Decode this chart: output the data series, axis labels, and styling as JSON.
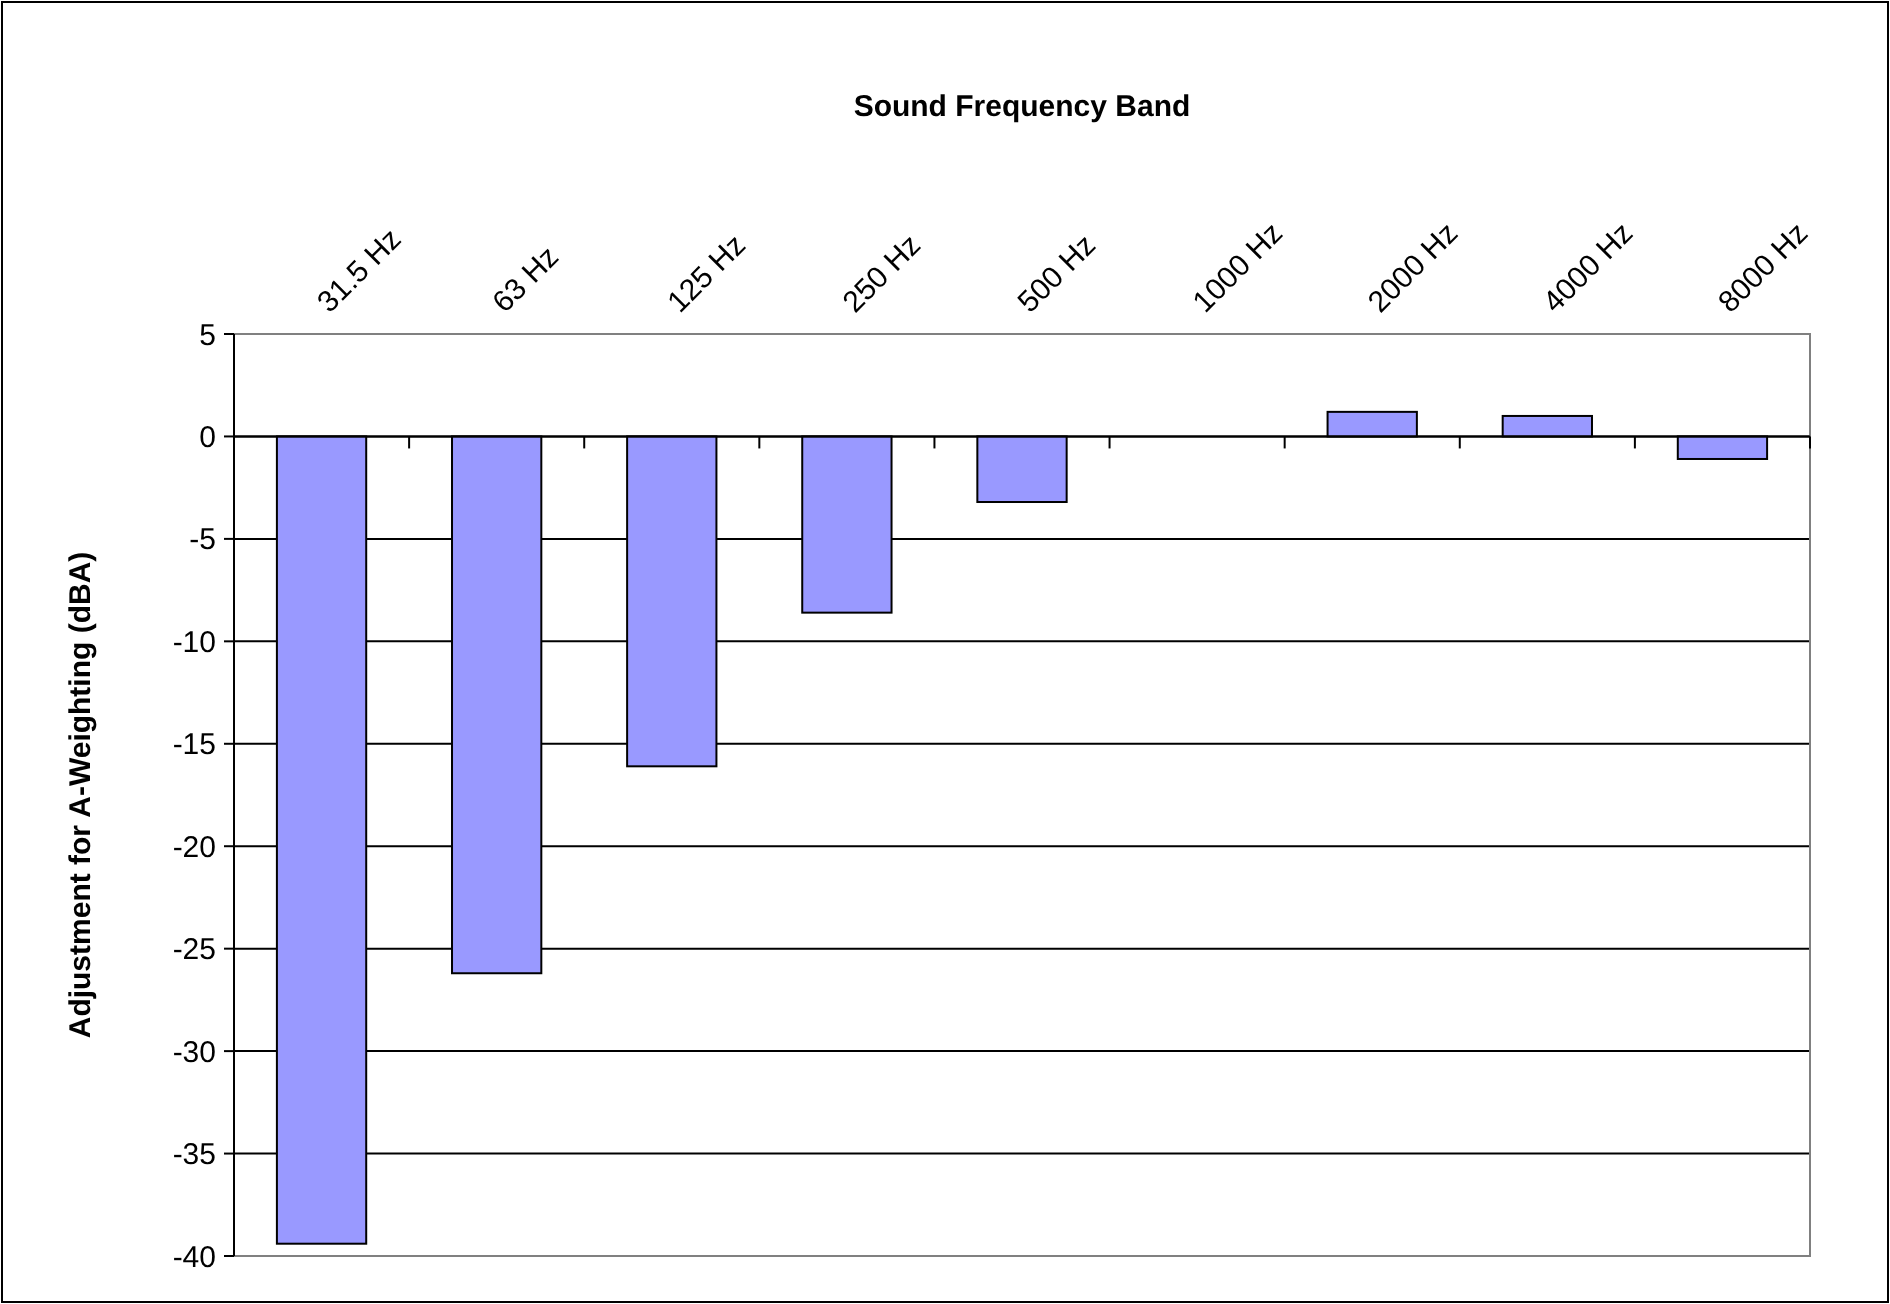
{
  "chart_data": {
    "type": "bar",
    "xlabel": "Sound Frequency Band",
    "ylabel": "Adjustment for A-Weighting (dBA)",
    "categories": [
      "31.5 Hz",
      "63 Hz",
      "125 Hz",
      "250 Hz",
      "500 Hz",
      "1000 Hz",
      "2000 Hz",
      "4000 Hz",
      "8000 Hz"
    ],
    "values": [
      -39.4,
      -26.2,
      -16.1,
      -8.6,
      -3.2,
      0,
      1.2,
      1.0,
      -1.1
    ],
    "color": "#9999ff",
    "ylim": [
      -40,
      5
    ],
    "yticks": [
      -40,
      -35,
      -30,
      -25,
      -20,
      -15,
      -10,
      -5,
      0,
      5
    ],
    "grid": "y"
  }
}
